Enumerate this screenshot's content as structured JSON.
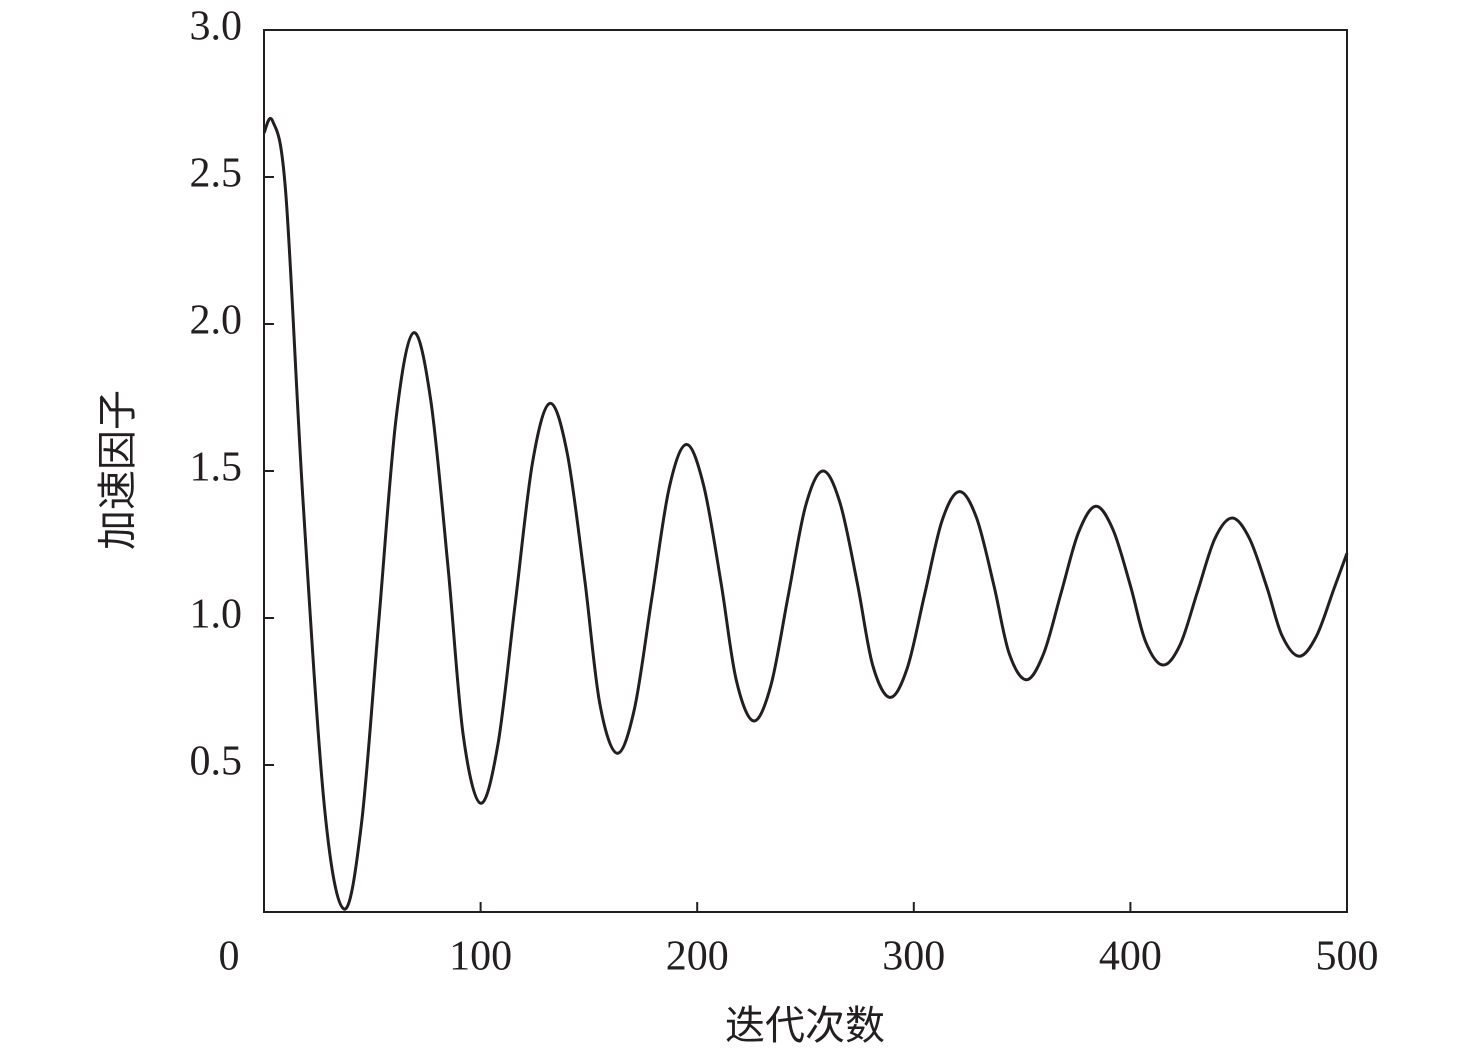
{
  "chart_data": {
    "type": "line",
    "xlabel": "迭代次数",
    "ylabel": "加速因子",
    "xlim": [
      0,
      500
    ],
    "ylim": [
      0,
      3
    ],
    "xticks": [
      0,
      100,
      200,
      300,
      400,
      500
    ],
    "yticks": [
      {
        "value": 0.5,
        "label": "0.5"
      },
      {
        "value": 1,
        "label": "1.0"
      },
      {
        "value": 1.5,
        "label": "1.5"
      },
      {
        "value": 2,
        "label": "2.0"
      },
      {
        "value": 2.5,
        "label": "2.5"
      },
      {
        "value": 3,
        "label": "3.0"
      }
    ],
    "color": "#231f20",
    "x": [
      0,
      4,
      10,
      18,
      28,
      37,
      45,
      53,
      61,
      69,
      77,
      85,
      92,
      100,
      108,
      116,
      124,
      132,
      140,
      148,
      155,
      163,
      171,
      179,
      187,
      195,
      203,
      211,
      218,
      226,
      234,
      242,
      250,
      258,
      266,
      274,
      281,
      289,
      297,
      305,
      313,
      321,
      329,
      337,
      344,
      352,
      360,
      368,
      376,
      384,
      392,
      400,
      407,
      415,
      423,
      431,
      439,
      447,
      455,
      463,
      470,
      478,
      486,
      494,
      500
    ],
    "values": [
      2.65,
      2.69,
      2.45,
      1.4,
      0.35,
      0.01,
      0.3,
      0.99,
      1.68,
      1.97,
      1.74,
      1.17,
      0.6,
      0.37,
      0.57,
      1.05,
      1.53,
      1.73,
      1.56,
      1.135,
      0.71,
      0.54,
      0.69,
      1.065,
      1.44,
      1.59,
      1.45,
      1.12,
      0.79,
      0.65,
      0.77,
      1.075,
      1.38,
      1.5,
      1.39,
      1.115,
      0.84,
      0.73,
      0.83,
      1.08,
      1.33,
      1.43,
      1.34,
      1.11,
      0.88,
      0.79,
      0.88,
      1.085,
      1.29,
      1.38,
      1.3,
      1.11,
      0.92,
      0.84,
      0.91,
      1.09,
      1.27,
      1.34,
      1.27,
      1.105,
      0.94,
      0.87,
      0.94,
      1.1,
      1.22
    ]
  }
}
